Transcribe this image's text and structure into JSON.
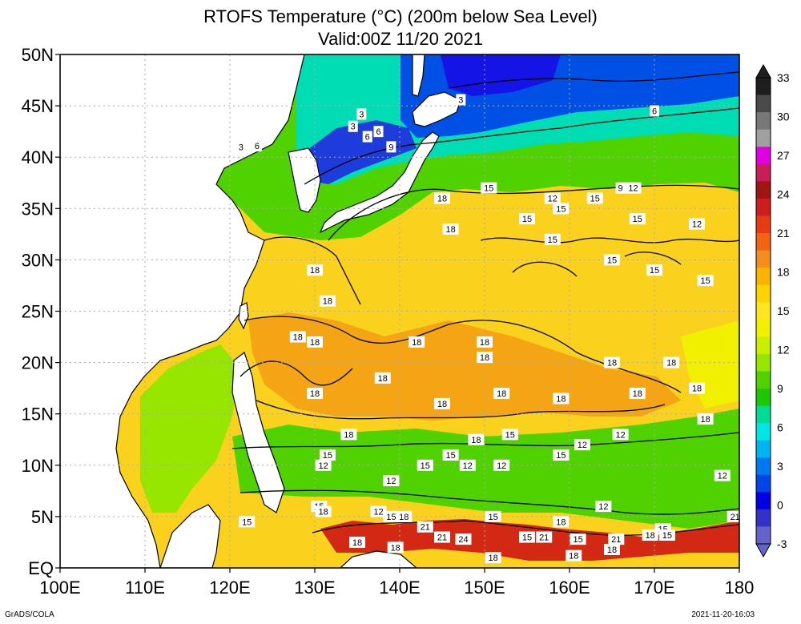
{
  "title": "RTOFS Temperature (°C) (200m below Sea Level)",
  "subtitle": "Valid:00Z 11/20 2021",
  "footer_left": "GrADS/COLA",
  "footer_right": "2021-11-20-16:03",
  "map": {
    "lon_range": [
      100,
      180
    ],
    "lat_range": [
      0,
      50
    ],
    "lat_labels": [
      "EQ",
      "5N",
      "10N",
      "15N",
      "20N",
      "25N",
      "30N",
      "35N",
      "40N",
      "45N",
      "50N"
    ],
    "lon_labels": [
      "100E",
      "110E",
      "120E",
      "130E",
      "140E",
      "150E",
      "160E",
      "170E",
      "180"
    ],
    "grid": "dotted",
    "contour_labels": [
      {
        "text": "3",
        "lon": 147.2,
        "lat": 45.6
      },
      {
        "text": "3",
        "lon": 121.3,
        "lat": 41.0
      },
      {
        "text": "6",
        "lon": 123.2,
        "lat": 41.1
      },
      {
        "text": "6",
        "lon": 136.2,
        "lat": 42.0
      },
      {
        "text": "3",
        "lon": 135.5,
        "lat": 44.2
      },
      {
        "text": "3",
        "lon": 134.5,
        "lat": 43.0
      },
      {
        "text": "6",
        "lon": 137.5,
        "lat": 42.5
      },
      {
        "text": "6",
        "lon": 170.0,
        "lat": 44.5
      },
      {
        "text": "9",
        "lon": 139.0,
        "lat": 41.0
      },
      {
        "text": "9",
        "lon": 166.0,
        "lat": 37.0
      },
      {
        "text": "12",
        "lon": 158.0,
        "lat": 36.0
      },
      {
        "text": "12",
        "lon": 167.5,
        "lat": 37.0
      },
      {
        "text": "12",
        "lon": 175.0,
        "lat": 33.5
      },
      {
        "text": "15",
        "lon": 155.0,
        "lat": 34.0
      },
      {
        "text": "15",
        "lon": 159.0,
        "lat": 35.0
      },
      {
        "text": "15",
        "lon": 163.0,
        "lat": 36.0
      },
      {
        "text": "15",
        "lon": 168.0,
        "lat": 34.0
      },
      {
        "text": "15",
        "lon": 150.5,
        "lat": 37.0
      },
      {
        "text": "15",
        "lon": 158.0,
        "lat": 32.0
      },
      {
        "text": "15",
        "lon": 165.0,
        "lat": 30.0
      },
      {
        "text": "15",
        "lon": 170.0,
        "lat": 29.0
      },
      {
        "text": "15",
        "lon": 176.0,
        "lat": 28.0
      },
      {
        "text": "18",
        "lon": 145.0,
        "lat": 36.0
      },
      {
        "text": "18",
        "lon": 146.0,
        "lat": 33.0
      },
      {
        "text": "18",
        "lon": 130.0,
        "lat": 29.0
      },
      {
        "text": "18",
        "lon": 131.5,
        "lat": 26.0
      },
      {
        "text": "18",
        "lon": 128.0,
        "lat": 22.5
      },
      {
        "text": "18",
        "lon": 130.0,
        "lat": 22.0
      },
      {
        "text": "18",
        "lon": 142.0,
        "lat": 22.0
      },
      {
        "text": "18",
        "lon": 150.0,
        "lat": 22.0
      },
      {
        "text": "18",
        "lon": 150.0,
        "lat": 20.5
      },
      {
        "text": "18",
        "lon": 138.0,
        "lat": 18.5
      },
      {
        "text": "18",
        "lon": 130.0,
        "lat": 17.0
      },
      {
        "text": "18",
        "lon": 145.0,
        "lat": 16.0
      },
      {
        "text": "18",
        "lon": 152.0,
        "lat": 17.0
      },
      {
        "text": "18",
        "lon": 159.0,
        "lat": 16.5
      },
      {
        "text": "18",
        "lon": 165.0,
        "lat": 20.0
      },
      {
        "text": "18",
        "lon": 168.0,
        "lat": 17.0
      },
      {
        "text": "18",
        "lon": 172.0,
        "lat": 20.0
      },
      {
        "text": "18",
        "lon": 175.0,
        "lat": 17.5
      },
      {
        "text": "18",
        "lon": 176.0,
        "lat": 14.5
      },
      {
        "text": "18",
        "lon": 134.0,
        "lat": 13.0
      },
      {
        "text": "18",
        "lon": 149.0,
        "lat": 12.5
      },
      {
        "text": "15",
        "lon": 146.0,
        "lat": 11.0
      },
      {
        "text": "15",
        "lon": 153.0,
        "lat": 13.0
      },
      {
        "text": "15",
        "lon": 159.0,
        "lat": 11.0
      },
      {
        "text": "12",
        "lon": 161.5,
        "lat": 12.0
      },
      {
        "text": "12",
        "lon": 166.0,
        "lat": 13.0
      },
      {
        "text": "15",
        "lon": 131.5,
        "lat": 11.0
      },
      {
        "text": "12",
        "lon": 131.0,
        "lat": 10.0
      },
      {
        "text": "15",
        "lon": 143.0,
        "lat": 10.0
      },
      {
        "text": "12",
        "lon": 148.0,
        "lat": 10.0
      },
      {
        "text": "12",
        "lon": 152.0,
        "lat": 10.0
      },
      {
        "text": "12",
        "lon": 139.0,
        "lat": 8.5
      },
      {
        "text": "12",
        "lon": 178.0,
        "lat": 9.0
      },
      {
        "text": "12",
        "lon": 164.0,
        "lat": 6.0
      },
      {
        "text": "15",
        "lon": 130.5,
        "lat": 6.0
      },
      {
        "text": "18",
        "lon": 131.0,
        "lat": 5.5
      },
      {
        "text": "12",
        "lon": 137.5,
        "lat": 5.5
      },
      {
        "text": "15",
        "lon": 139.0,
        "lat": 5.0
      },
      {
        "text": "18",
        "lon": 140.5,
        "lat": 5.0
      },
      {
        "text": "21",
        "lon": 143.0,
        "lat": 4.0
      },
      {
        "text": "21",
        "lon": 145.0,
        "lat": 3.0
      },
      {
        "text": "24",
        "lon": 147.5,
        "lat": 2.8
      },
      {
        "text": "15",
        "lon": 151.0,
        "lat": 5.0
      },
      {
        "text": "18",
        "lon": 159.0,
        "lat": 4.5
      },
      {
        "text": "15",
        "lon": 155.0,
        "lat": 3.0
      },
      {
        "text": "21",
        "lon": 157.0,
        "lat": 3.0
      },
      {
        "text": "15",
        "lon": 161.0,
        "lat": 2.8
      },
      {
        "text": "21",
        "lon": 165.5,
        "lat": 2.8
      },
      {
        "text": "18",
        "lon": 169.5,
        "lat": 3.2
      },
      {
        "text": "15",
        "lon": 171.0,
        "lat": 3.8
      },
      {
        "text": "15",
        "lon": 171.5,
        "lat": 3.2
      },
      {
        "text": "21",
        "lon": 179.5,
        "lat": 5.0
      },
      {
        "text": "15",
        "lon": 122.0,
        "lat": 4.5
      },
      {
        "text": "18",
        "lon": 135.0,
        "lat": 2.5
      },
      {
        "text": "18",
        "lon": 139.5,
        "lat": 2.0
      },
      {
        "text": "18",
        "lon": 151.0,
        "lat": 1.0
      },
      {
        "text": "18",
        "lon": 160.5,
        "lat": 1.2
      },
      {
        "text": "18",
        "lon": 165.0,
        "lat": 1.8
      }
    ]
  },
  "colorbar": {
    "ticks": [
      "33",
      "30",
      "27",
      "24",
      "21",
      "18",
      "15",
      "12",
      "9",
      "6",
      "3",
      "0",
      "-3"
    ],
    "colors": [
      "#1e1e1e",
      "#4a4a4a",
      "#787878",
      "#a0a0a0",
      "#e000e0",
      "#c81e5a",
      "#a01414",
      "#cc1e1e",
      "#e63c14",
      "#f06414",
      "#f58c1e",
      "#fab400",
      "#ffd200",
      "#ffe61e",
      "#f0f000",
      "#c8f000",
      "#96e600",
      "#50d200",
      "#1ec800",
      "#00dc96",
      "#00e6e6",
      "#00b4f0",
      "#0078f0",
      "#0046e6",
      "#0000e6",
      "#3232c8",
      "#6464c8"
    ]
  }
}
